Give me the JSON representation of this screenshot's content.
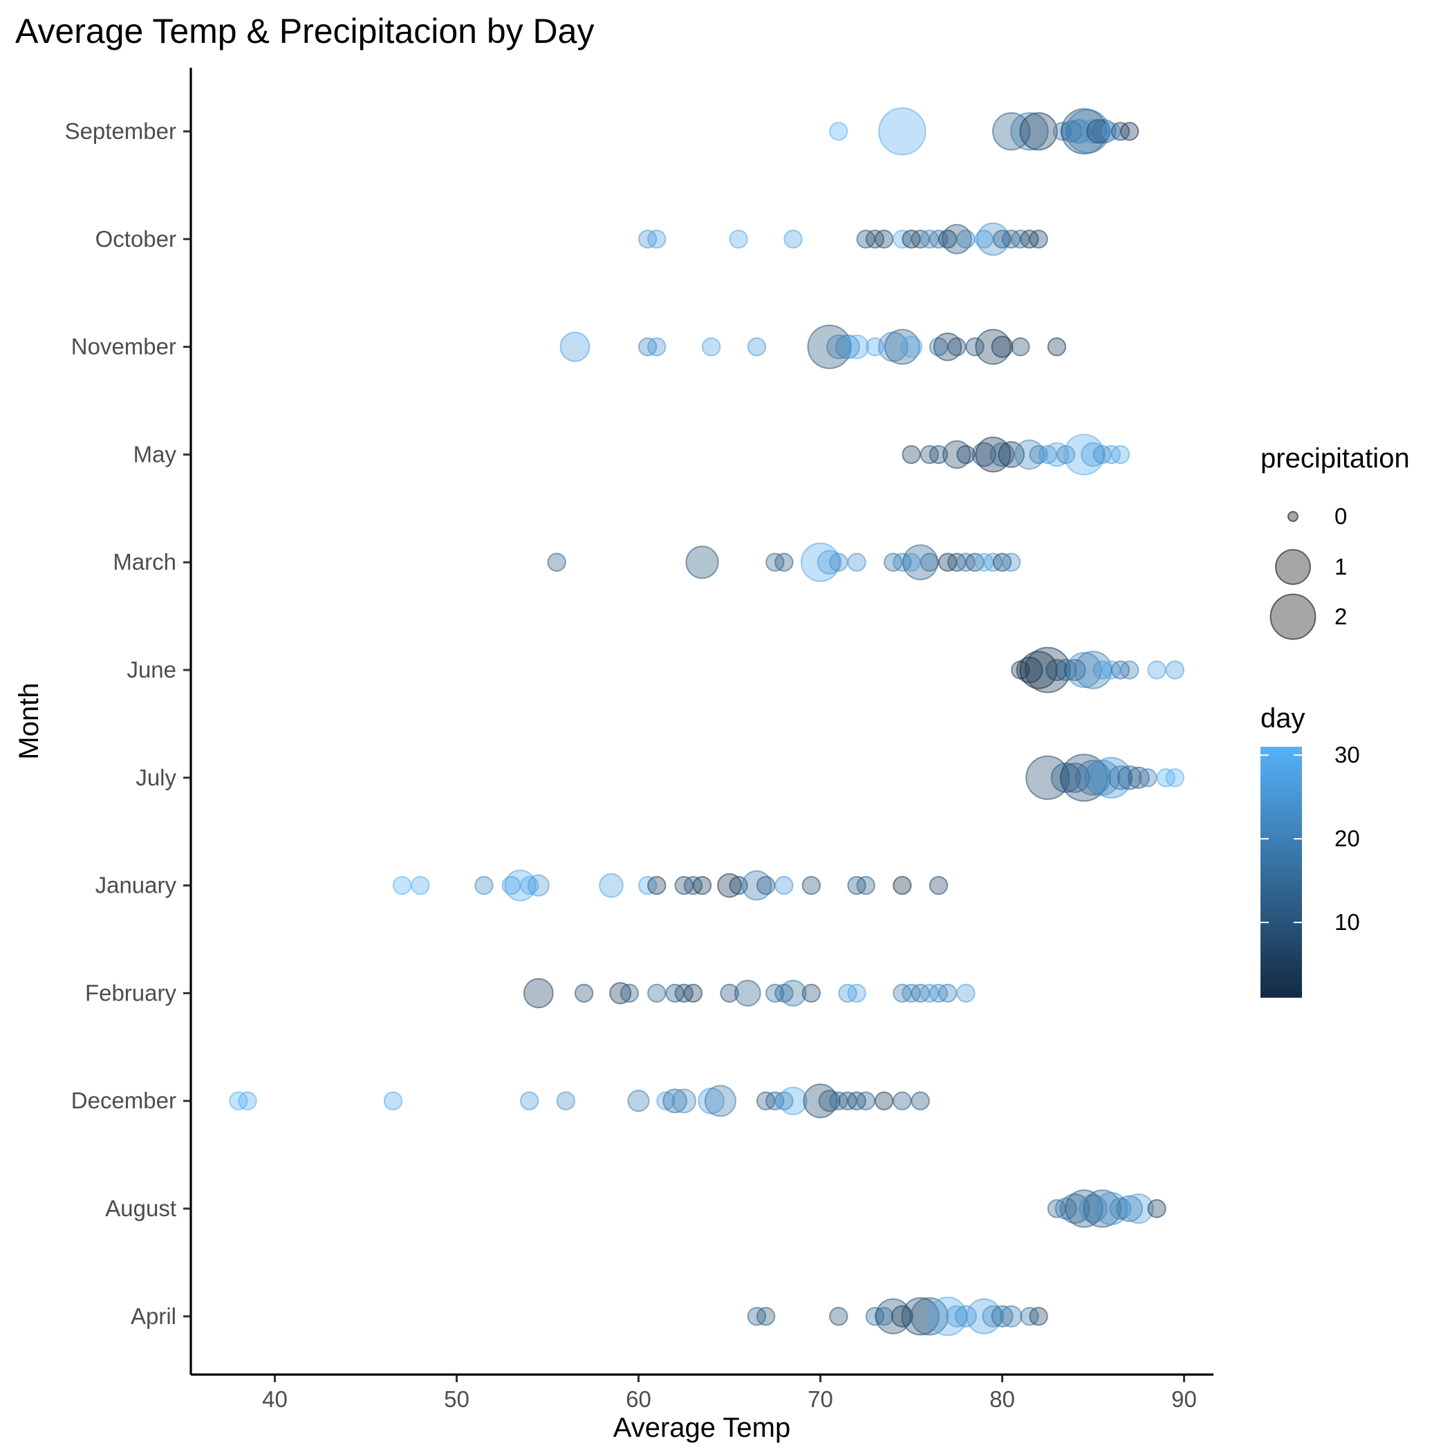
{
  "chart_data": {
    "type": "scatter",
    "title": "Average Temp & Precipitacion by Day",
    "xlabel": "Average Temp",
    "ylabel": "Month",
    "xlim": [
      35.5,
      92
    ],
    "x_ticks": [
      40,
      50,
      60,
      70,
      80,
      90
    ],
    "categories": [
      "September",
      "October",
      "November",
      "May",
      "March",
      "June",
      "July",
      "January",
      "February",
      "December",
      "August",
      "April"
    ],
    "size_legend": {
      "title": "precipitation",
      "values": [
        0,
        1,
        2
      ]
    },
    "color_legend": {
      "title": "day",
      "ticks": [
        10,
        20,
        30
      ],
      "range": [
        1,
        31
      ],
      "low_color": "#132b43",
      "high_color": "#56b1f7"
    },
    "point_alpha": 0.35,
    "series": [
      {
        "category": "September",
        "points": [
          [
            71,
            31,
            0.1
          ],
          [
            74.5,
            30,
            2.2
          ],
          [
            80.5,
            12,
            1.2
          ],
          [
            81.5,
            18,
            1.2
          ],
          [
            82,
            5,
            1.2
          ],
          [
            83.3,
            19,
            0.1
          ],
          [
            83.8,
            21,
            0.2
          ],
          [
            84.2,
            24,
            0.3
          ],
          [
            84.5,
            9,
            2.0
          ],
          [
            84.7,
            20,
            1.8
          ],
          [
            85,
            25,
            0.3
          ],
          [
            85.3,
            8,
            0.3
          ],
          [
            85.6,
            15,
            0.3
          ],
          [
            86,
            28,
            0.1
          ],
          [
            86.5,
            7,
            0.1
          ],
          [
            87,
            3,
            0.1
          ]
        ]
      },
      {
        "category": "October",
        "points": [
          [
            60.5,
            25,
            0.1
          ],
          [
            61,
            27,
            0.1
          ],
          [
            65.5,
            29,
            0.1
          ],
          [
            68.5,
            28,
            0.1
          ],
          [
            72.5,
            10,
            0.1
          ],
          [
            73,
            8,
            0.1
          ],
          [
            73.5,
            7,
            0.1
          ],
          [
            74.5,
            30,
            0.1
          ],
          [
            75,
            3,
            0.1
          ],
          [
            75.5,
            9,
            0.1
          ],
          [
            76,
            22,
            0.1
          ],
          [
            76.5,
            17,
            0.1
          ],
          [
            77,
            4,
            0.1
          ],
          [
            77.5,
            11,
            0.6
          ],
          [
            78,
            20,
            0.1
          ],
          [
            79,
            26,
            0.1
          ],
          [
            79.5,
            24,
            0.8
          ],
          [
            80,
            12,
            0.1
          ],
          [
            80.5,
            13,
            0.1
          ],
          [
            81,
            16,
            0.1
          ],
          [
            81.5,
            5,
            0.1
          ],
          [
            82,
            6,
            0.1
          ]
        ]
      },
      {
        "category": "November",
        "points": [
          [
            56.5,
            27,
            0.6
          ],
          [
            60.5,
            21,
            0.1
          ],
          [
            61,
            25,
            0.1
          ],
          [
            64,
            28,
            0.1
          ],
          [
            66.5,
            26,
            0.1
          ],
          [
            70.5,
            11,
            1.8
          ],
          [
            71,
            19,
            0.3
          ],
          [
            71.5,
            20,
            0.3
          ],
          [
            72,
            30,
            0.3
          ],
          [
            73,
            29,
            0.1
          ],
          [
            74,
            23,
            0.6
          ],
          [
            74.5,
            14,
            1.0
          ],
          [
            75,
            28,
            0.2
          ],
          [
            76.5,
            18,
            0.1
          ],
          [
            77,
            7,
            0.5
          ],
          [
            77.5,
            9,
            0.1
          ],
          [
            78.5,
            10,
            0.1
          ],
          [
            79.5,
            6,
            1.0
          ],
          [
            80,
            4,
            0.2
          ],
          [
            81,
            8,
            0.1
          ],
          [
            83,
            5,
            0.1
          ]
        ]
      },
      {
        "category": "May",
        "points": [
          [
            75,
            6,
            0.1
          ],
          [
            76,
            10,
            0.1
          ],
          [
            76.5,
            9,
            0.1
          ],
          [
            77.5,
            8,
            0.5
          ],
          [
            78,
            6,
            0.1
          ],
          [
            79,
            12,
            0.3
          ],
          [
            79.5,
            3,
            1.0
          ],
          [
            80,
            14,
            0.3
          ],
          [
            80.5,
            5,
            0.4
          ],
          [
            81.5,
            22,
            0.6
          ],
          [
            82,
            19,
            0.1
          ],
          [
            82.5,
            25,
            0.1
          ],
          [
            83,
            28,
            0.3
          ],
          [
            83.5,
            21,
            0.1
          ],
          [
            84.5,
            30,
            1.5
          ],
          [
            85,
            26,
            0.3
          ],
          [
            85.5,
            24,
            0.1
          ],
          [
            86,
            27,
            0.1
          ],
          [
            86.5,
            29,
            0.1
          ]
        ]
      },
      {
        "category": "March",
        "points": [
          [
            55.5,
            13,
            0.1
          ],
          [
            63.5,
            11,
            0.8
          ],
          [
            67.5,
            15,
            0.1
          ],
          [
            68,
            12,
            0.1
          ],
          [
            70,
            29,
            1.3
          ],
          [
            70.5,
            27,
            0.3
          ],
          [
            71,
            23,
            0.1
          ],
          [
            72,
            24,
            0.1
          ],
          [
            74,
            17,
            0.1
          ],
          [
            74.5,
            21,
            0.1
          ],
          [
            75,
            31,
            0.1
          ],
          [
            75.5,
            14,
            1.0
          ],
          [
            76,
            16,
            0.1
          ],
          [
            77,
            3,
            0.1
          ],
          [
            77.5,
            8,
            0.1
          ],
          [
            78,
            19,
            0.1
          ],
          [
            78.5,
            10,
            0.1
          ],
          [
            79,
            29,
            0.1
          ],
          [
            79.5,
            26,
            0.1
          ],
          [
            80,
            7,
            0.1
          ],
          [
            80.5,
            22,
            0.1
          ]
        ]
      },
      {
        "category": "June",
        "points": [
          [
            81,
            6,
            0.1
          ],
          [
            81.5,
            3,
            0.4
          ],
          [
            82,
            1,
            1.2
          ],
          [
            82.5,
            4,
            2.0
          ],
          [
            83,
            7,
            0.2
          ],
          [
            83.5,
            12,
            0.2
          ],
          [
            84,
            9,
            0.2
          ],
          [
            84.5,
            22,
            1.0
          ],
          [
            85,
            19,
            1.2
          ],
          [
            85.5,
            25,
            0.1
          ],
          [
            86,
            29,
            0.1
          ],
          [
            86.5,
            16,
            0.1
          ],
          [
            87,
            20,
            0.1
          ],
          [
            88.5,
            28,
            0.1
          ],
          [
            89.5,
            26,
            0.1
          ]
        ]
      },
      {
        "category": "July",
        "points": [
          [
            82.5,
            8,
            1.8
          ],
          [
            83.5,
            11,
            0.6
          ],
          [
            84,
            14,
            0.6
          ],
          [
            84.5,
            9,
            2.2
          ],
          [
            85,
            16,
            1.0
          ],
          [
            85.5,
            20,
            1.0
          ],
          [
            86,
            24,
            1.5
          ],
          [
            86.5,
            18,
            0.3
          ],
          [
            87,
            14,
            0.3
          ],
          [
            87.5,
            12,
            0.2
          ],
          [
            88,
            19,
            0.1
          ],
          [
            89,
            29,
            0.1
          ],
          [
            89.5,
            31,
            0.1
          ]
        ]
      },
      {
        "category": "January",
        "points": [
          [
            47,
            31,
            0.1
          ],
          [
            48,
            30,
            0.1
          ],
          [
            51.5,
            22,
            0.1
          ],
          [
            53,
            27,
            0.1
          ],
          [
            53.5,
            29,
            0.7
          ],
          [
            54,
            30,
            0.1
          ],
          [
            54.5,
            26,
            0.2
          ],
          [
            58.5,
            28,
            0.3
          ],
          [
            60.5,
            29,
            0.1
          ],
          [
            61,
            5,
            0.1
          ],
          [
            62.5,
            8,
            0.1
          ],
          [
            63,
            10,
            0.1
          ],
          [
            63.5,
            4,
            0.1
          ],
          [
            65,
            3,
            0.3
          ],
          [
            65.5,
            6,
            0.1
          ],
          [
            66.5,
            19,
            0.6
          ],
          [
            67,
            12,
            0.1
          ],
          [
            68,
            25,
            0.1
          ],
          [
            69.5,
            9,
            0.1
          ],
          [
            72,
            11,
            0.1
          ],
          [
            72.5,
            13,
            0.1
          ],
          [
            74.5,
            2,
            0.1
          ],
          [
            76.5,
            7,
            0.1
          ]
        ]
      },
      {
        "category": "February",
        "points": [
          [
            54.5,
            7,
            0.6
          ],
          [
            57,
            9,
            0.1
          ],
          [
            59,
            4,
            0.2
          ],
          [
            59.5,
            12,
            0.1
          ],
          [
            61,
            15,
            0.1
          ],
          [
            62,
            11,
            0.1
          ],
          [
            62.5,
            8,
            0.1
          ],
          [
            63,
            5,
            0.1
          ],
          [
            65,
            10,
            0.1
          ],
          [
            66,
            13,
            0.4
          ],
          [
            67.5,
            16,
            0.1
          ],
          [
            68,
            14,
            0.1
          ],
          [
            68.5,
            18,
            0.4
          ],
          [
            69.5,
            9,
            0.1
          ],
          [
            71.5,
            24,
            0.1
          ],
          [
            72,
            28,
            0.1
          ],
          [
            74.5,
            19,
            0.1
          ],
          [
            75,
            21,
            0.1
          ],
          [
            75.5,
            17,
            0.1
          ],
          [
            76,
            26,
            0.1
          ],
          [
            76.5,
            23,
            0.1
          ],
          [
            77,
            20,
            0.1
          ],
          [
            78,
            27,
            0.1
          ]
        ]
      },
      {
        "category": "December",
        "points": [
          [
            38,
            31,
            0.1
          ],
          [
            38.5,
            30,
            0.1
          ],
          [
            46.5,
            29,
            0.1
          ],
          [
            54,
            26,
            0.1
          ],
          [
            56,
            24,
            0.1
          ],
          [
            60,
            20,
            0.2
          ],
          [
            61.5,
            28,
            0.1
          ],
          [
            62,
            16,
            0.3
          ],
          [
            62.5,
            23,
            0.3
          ],
          [
            64,
            27,
            0.4
          ],
          [
            64.5,
            19,
            0.7
          ],
          [
            67,
            12,
            0.1
          ],
          [
            67.5,
            14,
            0.1
          ],
          [
            68,
            18,
            0.1
          ],
          [
            68.5,
            29,
            0.5
          ],
          [
            70,
            8,
            0.9
          ],
          [
            70.5,
            10,
            0.2
          ],
          [
            71,
            15,
            0.1
          ],
          [
            71.5,
            11,
            0.1
          ],
          [
            72,
            9,
            0.1
          ],
          [
            72.5,
            13,
            0.1
          ],
          [
            73.5,
            4,
            0.1
          ],
          [
            74.5,
            12,
            0.1
          ],
          [
            75.5,
            10,
            0.1
          ]
        ]
      },
      {
        "category": "August",
        "points": [
          [
            83,
            14,
            0.1
          ],
          [
            83.5,
            18,
            0.2
          ],
          [
            84,
            16,
            0.6
          ],
          [
            84.5,
            12,
            1.2
          ],
          [
            85,
            22,
            0.5
          ],
          [
            85.5,
            13,
            1.2
          ],
          [
            86,
            24,
            0.8
          ],
          [
            86.5,
            21,
            0.2
          ],
          [
            87,
            17,
            0.4
          ],
          [
            87.5,
            27,
            0.6
          ],
          [
            88.5,
            5,
            0.1
          ]
        ]
      },
      {
        "category": "April",
        "points": [
          [
            66.5,
            13,
            0.1
          ],
          [
            67,
            11,
            0.1
          ],
          [
            71,
            9,
            0.1
          ],
          [
            73,
            15,
            0.1
          ],
          [
            73.5,
            19,
            0.1
          ],
          [
            74,
            10,
            1.0
          ],
          [
            74.5,
            6,
            0.2
          ],
          [
            75.5,
            8,
            1.2
          ],
          [
            76,
            12,
            1.2
          ],
          [
            77,
            29,
            1.3
          ],
          [
            77.5,
            26,
            0.2
          ],
          [
            78,
            24,
            0.2
          ],
          [
            79,
            27,
            1.0
          ],
          [
            79.5,
            22,
            0.2
          ],
          [
            80,
            15,
            0.2
          ],
          [
            80.5,
            19,
            0.2
          ],
          [
            81.5,
            17,
            0.1
          ],
          [
            82,
            6,
            0.1
          ]
        ]
      }
    ]
  }
}
